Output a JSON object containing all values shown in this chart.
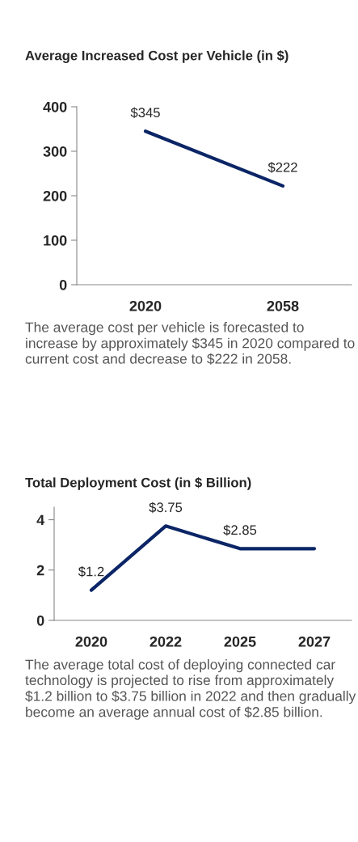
{
  "chart_data": [
    {
      "type": "line",
      "title": "Average Increased Cost per Vehicle (in $)",
      "categories": [
        "2020",
        "2058"
      ],
      "series": [
        {
          "color": "#0b2566",
          "values": [
            345,
            222
          ],
          "value_labels": [
            "$345",
            "$222"
          ]
        }
      ],
      "ylim": [
        0,
        400
      ],
      "yticks": [
        0,
        100,
        200,
        300,
        400
      ],
      "annotations": [
        "The average cost per vehicle is forecasted to increase by approximately $345 in 2020 compared to current cost and decrease to $222 in 2058."
      ]
    },
    {
      "type": "line",
      "title": "Total Deployment Cost (in $ Billion)",
      "categories": [
        "2020",
        "2022",
        "2025",
        "2027"
      ],
      "series": [
        {
          "color": "#0b2566",
          "values": [
            1.2,
            3.75,
            2.85,
            2.85
          ],
          "value_labels": [
            "$1.2",
            "$3.75",
            "$2.85",
            null
          ]
        }
      ],
      "ylim": [
        0,
        4.5
      ],
      "yticks": [
        0,
        2,
        4
      ],
      "annotations": [
        "The average total cost of deploying connected car technology is projected to rise from approximately $1.2 billion to $3.75 billion in 2022 and then gradually become an average annual cost of $2.85 billion."
      ]
    }
  ]
}
